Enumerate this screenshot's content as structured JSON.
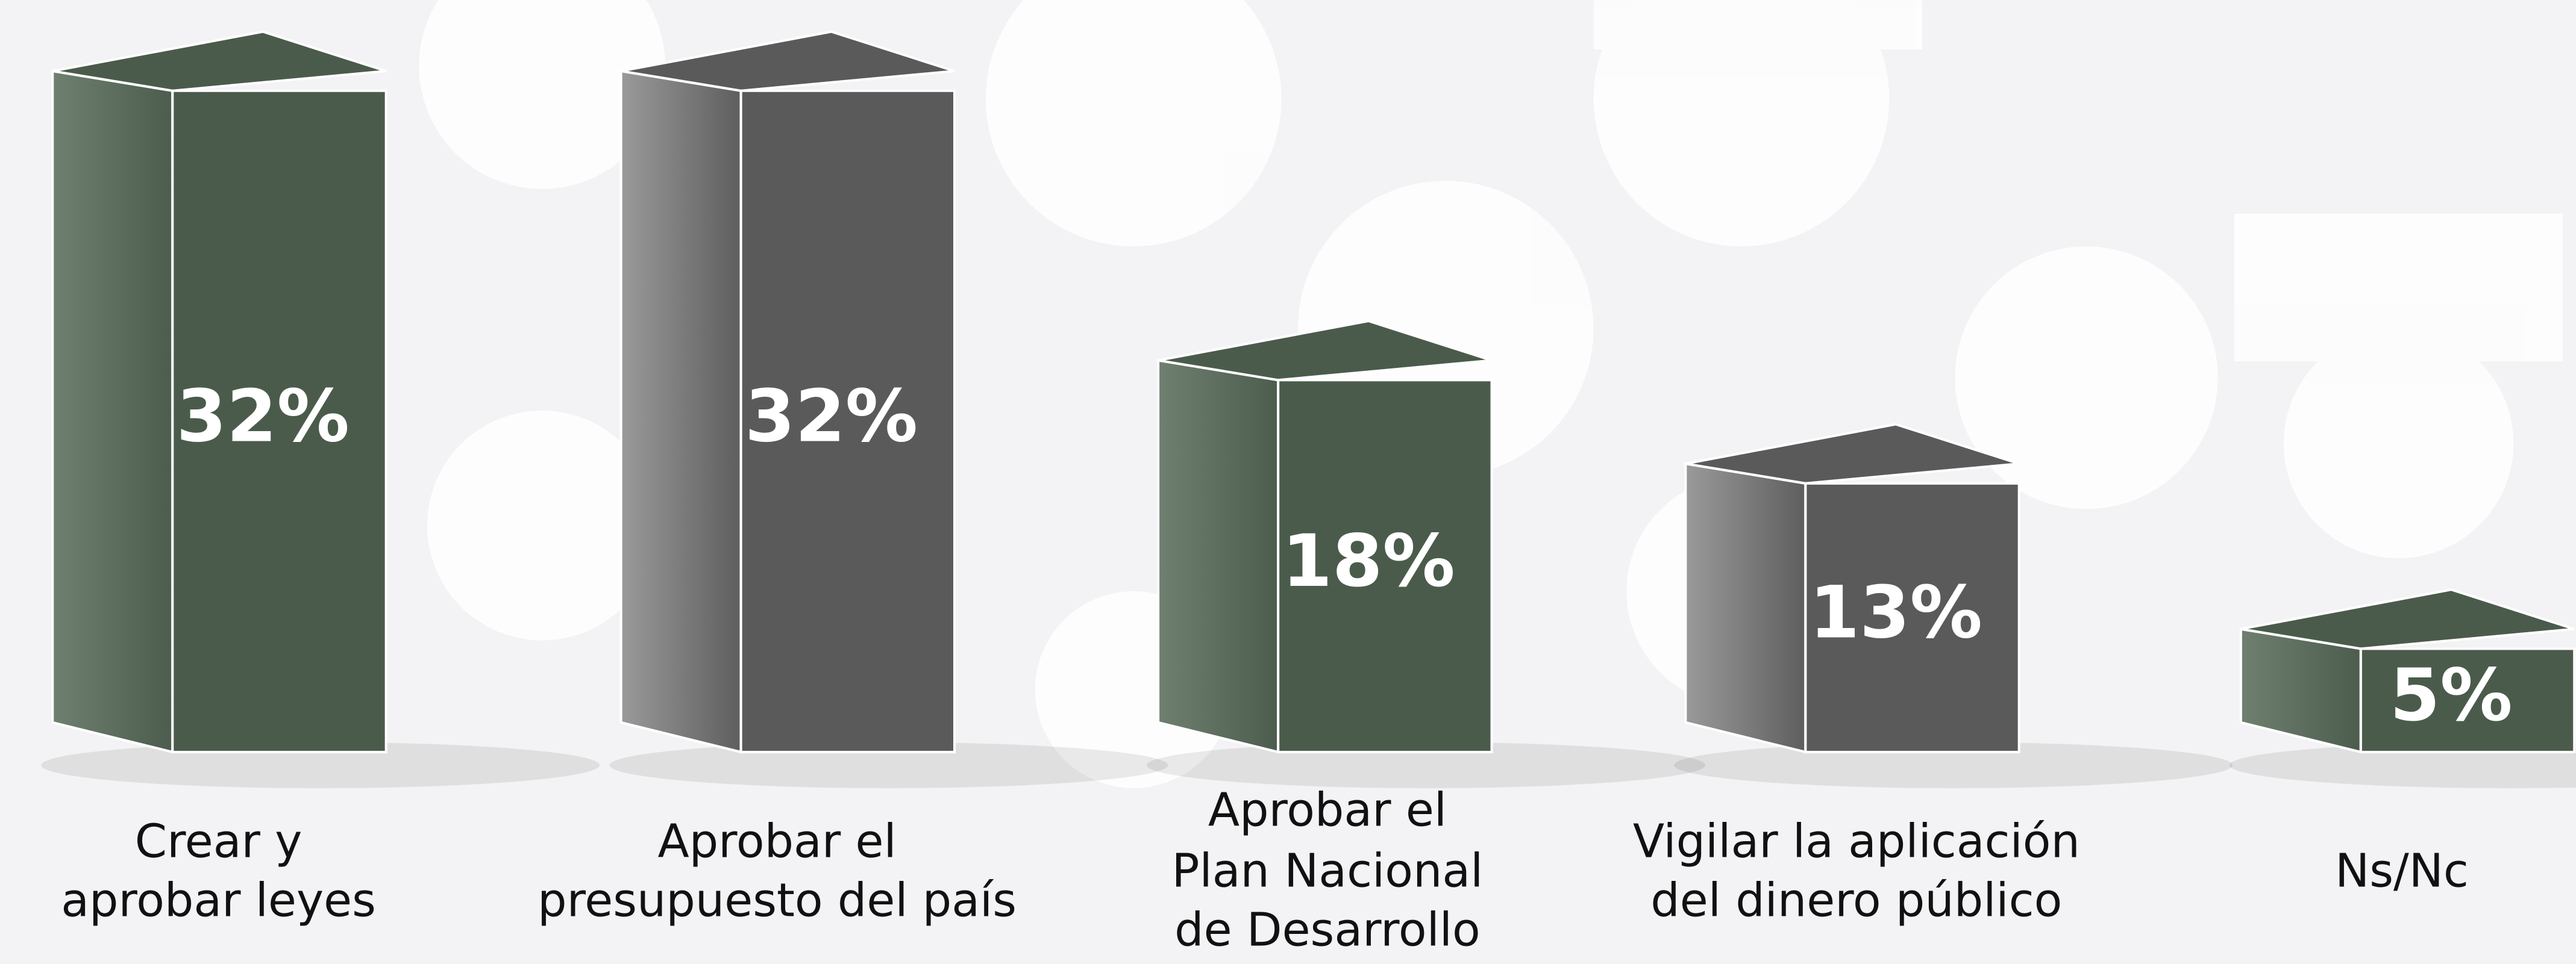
{
  "chart_data": {
    "type": "bar",
    "categories": [
      "Crear y aprobar leyes",
      "Aprobar el presupuesto del país",
      "Aprobar el Plan Nacional de Desarrollo",
      "Vigilar la aplicación del dinero público",
      "Ns/Nc"
    ],
    "values": [
      32,
      32,
      18,
      13,
      5
    ],
    "value_labels": [
      "32%",
      "32%",
      "18%",
      "13%",
      "5%"
    ],
    "colors": [
      "#4a5b4b",
      "#5a5a5a",
      "#4a5b4b",
      "#5a5a5a",
      "#4a5b4b"
    ],
    "ylim": [
      0,
      34
    ]
  }
}
